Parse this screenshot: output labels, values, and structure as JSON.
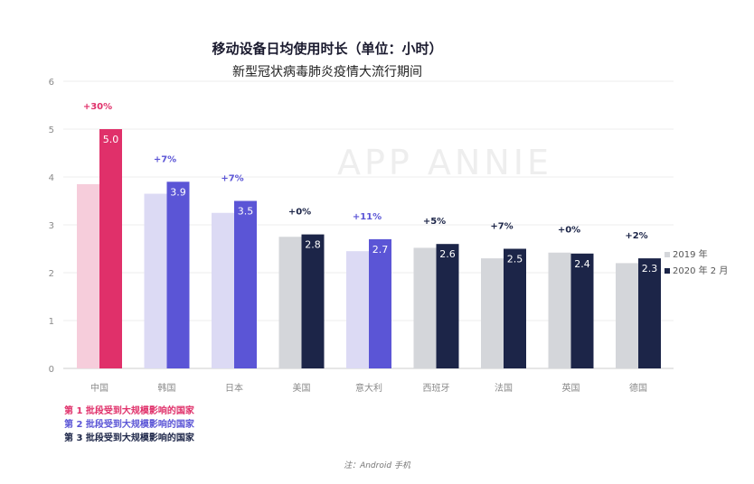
{
  "title": "移动设备日均使用时长（单位：小时）",
  "subtitle": "新型冠状病毒肺炎疫情大流行期间",
  "watermark": "APP ANNIE",
  "note": "注：Android 手机",
  "chart_data": {
    "type": "bar",
    "title": "移动设备日均使用时长（单位：小时）",
    "subtitle": "新型冠状病毒肺炎疫情大流行期间",
    "categories": [
      "中国",
      "韩国",
      "日本",
      "美国",
      "意大利",
      "西班牙",
      "法国",
      "英国",
      "德国"
    ],
    "ylim": [
      0,
      6
    ],
    "yticks": [
      0,
      1,
      2,
      3,
      4,
      5,
      6
    ],
    "grid": true,
    "legend_placement": "right",
    "series": [
      {
        "name": "2019 年",
        "values": [
          3.85,
          3.65,
          3.25,
          2.75,
          2.45,
          2.52,
          2.3,
          2.42,
          2.2
        ]
      },
      {
        "name": "2020 年 2 月",
        "values": [
          5.0,
          3.9,
          3.5,
          2.8,
          2.7,
          2.6,
          2.5,
          2.4,
          2.3
        ],
        "labels": [
          "5.0",
          "3.9",
          "3.5",
          "2.8",
          "2.7",
          "2.6",
          "2.5",
          "2.4",
          "2.3"
        ]
      }
    ],
    "changes": [
      "+30%",
      "+7%",
      "+7%",
      "+0%",
      "+11%",
      "+5%",
      "+7%",
      "+0%",
      "+2%"
    ],
    "waves": [
      1,
      2,
      2,
      3,
      2,
      3,
      3,
      3,
      3
    ]
  },
  "wave_legend": [
    {
      "label": "第 1 批段受到大规模影响的国家",
      "color": "#e0306a"
    },
    {
      "label": "第 2 批段受到大规模影响的国家",
      "color": "#5b55d6"
    },
    {
      "label": "第 3 批段受到大规模影响的国家",
      "color": "#1c2548"
    }
  ],
  "colors": {
    "wave1_2019": "#f6cddb",
    "wave1_2020": "#e0306a",
    "wave2_2019": "#dcdaf4",
    "wave2_2020": "#5b55d6",
    "wave3_2019": "#d4d6da",
    "wave3_2020": "#1c2548",
    "axis_text": "#8a8a8a",
    "grid": "#eeeeee"
  }
}
